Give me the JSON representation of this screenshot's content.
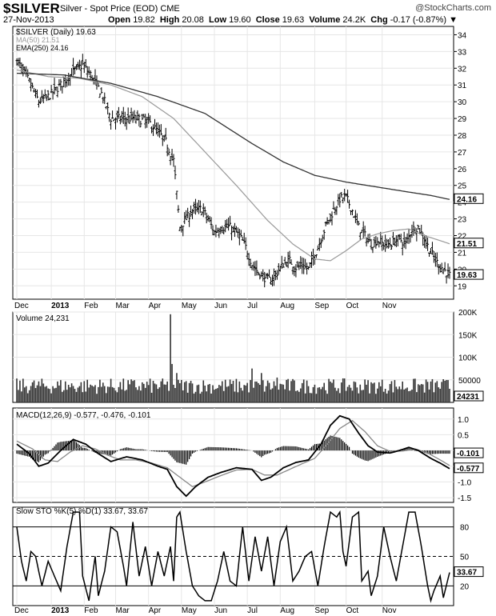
{
  "header": {
    "symbol": "$SILVER",
    "description": "Silver - Spot Price (EOD)",
    "exchange": "CME",
    "date": "27-Nov-2013",
    "open_label": "Open",
    "open": "19.82",
    "high_label": "High",
    "high": "20.08",
    "low_label": "Low",
    "low": "19.60",
    "close_label": "Close",
    "close": "19.63",
    "volume_label": "Volume",
    "volume": "24.2K",
    "chg_label": "Chg",
    "chg": "-0.17 (-0.87%)",
    "logo": "@StockCharts.com"
  },
  "colors": {
    "price": "#000000",
    "ma50": "#999999",
    "ema250": "#333333",
    "grid": "#e6e6e6",
    "volume": "#333333",
    "histogram": "#000000"
  },
  "chart_data": [
    {
      "type": "ohlc",
      "panel": "price",
      "legend": [
        "$SILVER (Daily) 19.63",
        "MA(50) 21.51",
        "EMA(250) 24.16"
      ],
      "x_labels": [
        "Dec",
        "2013",
        "Feb",
        "Mar",
        "Apr",
        "May",
        "Jun",
        "Jul",
        "Aug",
        "Sep",
        "Oct",
        "Nov"
      ],
      "yticks": [
        19,
        20,
        21,
        22,
        23,
        24,
        25,
        26,
        27,
        28,
        29,
        30,
        31,
        32,
        33,
        34
      ],
      "ylim": [
        18.2,
        34.5
      ],
      "close_anchors": [
        [
          0,
          32.5
        ],
        [
          8,
          31.2
        ],
        [
          14,
          30.0
        ],
        [
          20,
          30.3
        ],
        [
          28,
          31.0
        ],
        [
          36,
          31.8
        ],
        [
          42,
          32.2
        ],
        [
          48,
          31.5
        ],
        [
          54,
          30.5
        ],
        [
          60,
          29.0
        ],
        [
          68,
          29.0
        ],
        [
          76,
          29.0
        ],
        [
          84,
          28.8
        ],
        [
          90,
          28.2
        ],
        [
          95,
          27.6
        ],
        [
          100,
          26.5
        ],
        [
          104,
          22.5
        ],
        [
          108,
          23.0
        ],
        [
          112,
          23.5
        ],
        [
          118,
          23.6
        ],
        [
          122,
          23.0
        ],
        [
          126,
          22.2
        ],
        [
          130,
          22.5
        ],
        [
          136,
          22.5
        ],
        [
          142,
          22.0
        ],
        [
          146,
          21.3
        ],
        [
          150,
          20.3
        ],
        [
          154,
          19.8
        ],
        [
          158,
          19.5
        ],
        [
          162,
          19.3
        ],
        [
          166,
          19.8
        ],
        [
          170,
          20.3
        ],
        [
          174,
          20.5
        ],
        [
          178,
          20.1
        ],
        [
          182,
          20.2
        ],
        [
          186,
          20.0
        ],
        [
          190,
          20.8
        ],
        [
          194,
          21.8
        ],
        [
          198,
          22.8
        ],
        [
          202,
          23.5
        ],
        [
          206,
          24.2
        ],
        [
          210,
          24.3
        ],
        [
          214,
          23.5
        ],
        [
          218,
          22.5
        ],
        [
          222,
          22.0
        ],
        [
          226,
          21.5
        ],
        [
          230,
          21.7
        ],
        [
          234,
          21.5
        ],
        [
          238,
          21.5
        ],
        [
          244,
          21.8
        ],
        [
          248,
          21.5
        ],
        [
          252,
          22.4
        ],
        [
          256,
          22.5
        ],
        [
          260,
          21.8
        ],
        [
          264,
          21.0
        ],
        [
          268,
          20.4
        ],
        [
          272,
          20.0
        ],
        [
          276,
          19.63
        ]
      ],
      "ma50": {
        "label": "MA(50)",
        "last": 21.51,
        "anchors": [
          [
            0,
            31.9
          ],
          [
            20,
            31.5
          ],
          [
            40,
            31.4
          ],
          [
            60,
            31.0
          ],
          [
            80,
            30.3
          ],
          [
            100,
            29.0
          ],
          [
            120,
            27.0
          ],
          [
            140,
            25.0
          ],
          [
            160,
            22.9
          ],
          [
            176,
            21.5
          ],
          [
            190,
            20.6
          ],
          [
            200,
            20.5
          ],
          [
            210,
            21.1
          ],
          [
            220,
            21.8
          ],
          [
            230,
            22.1
          ],
          [
            240,
            22.3
          ],
          [
            250,
            22.4
          ],
          [
            260,
            22.0
          ],
          [
            270,
            21.7
          ],
          [
            276,
            21.51
          ]
        ]
      },
      "ema250": {
        "label": "EMA(250)",
        "last": 24.16,
        "anchors": [
          [
            0,
            31.7
          ],
          [
            30,
            31.6
          ],
          [
            60,
            31.1
          ],
          [
            90,
            30.3
          ],
          [
            120,
            29.3
          ],
          [
            150,
            27.5
          ],
          [
            170,
            26.4
          ],
          [
            190,
            25.6
          ],
          [
            210,
            25.2
          ],
          [
            230,
            24.9
          ],
          [
            250,
            24.6
          ],
          [
            264,
            24.4
          ],
          [
            276,
            24.16
          ]
        ]
      },
      "last_values": [
        "24.16",
        "21.51",
        "19.63"
      ]
    },
    {
      "type": "bar",
      "panel": "volume",
      "legend": "Volume 24,231",
      "yticks": [
        "200K",
        "150K",
        "100K",
        "50000"
      ],
      "ylim": [
        0,
        200000
      ],
      "spikes": [
        [
          98,
          195000
        ],
        [
          99,
          85000
        ],
        [
          102,
          65000
        ],
        [
          150,
          75000
        ],
        [
          156,
          65000
        ],
        [
          166,
          55000
        ]
      ],
      "base_level": 38000,
      "last_value": "24231"
    },
    {
      "type": "line",
      "panel": "macd",
      "legend": "MACD(12,26,9) -0.577, -0.476, -0.101",
      "yticks": [
        1.0,
        0.5,
        0.0,
        -0.5,
        -1.0,
        -1.5
      ],
      "ylim": [
        -1.65,
        1.35
      ],
      "macd_anchors": [
        [
          0,
          0.2
        ],
        [
          8,
          -0.1
        ],
        [
          14,
          -0.5
        ],
        [
          20,
          -0.4
        ],
        [
          28,
          0.0
        ],
        [
          36,
          0.35
        ],
        [
          44,
          0.2
        ],
        [
          52,
          -0.1
        ],
        [
          60,
          -0.35
        ],
        [
          70,
          -0.2
        ],
        [
          80,
          -0.3
        ],
        [
          90,
          -0.5
        ],
        [
          96,
          -0.6
        ],
        [
          102,
          -1.15
        ],
        [
          108,
          -1.45
        ],
        [
          114,
          -1.15
        ],
        [
          122,
          -0.85
        ],
        [
          130,
          -0.7
        ],
        [
          140,
          -0.55
        ],
        [
          150,
          -0.6
        ],
        [
          156,
          -0.95
        ],
        [
          162,
          -0.85
        ],
        [
          170,
          -0.55
        ],
        [
          178,
          -0.38
        ],
        [
          186,
          -0.3
        ],
        [
          194,
          0.2
        ],
        [
          200,
          0.8
        ],
        [
          206,
          1.1
        ],
        [
          212,
          1.0
        ],
        [
          218,
          0.55
        ],
        [
          224,
          0.15
        ],
        [
          230,
          -0.05
        ],
        [
          238,
          -0.08
        ],
        [
          244,
          0.0
        ],
        [
          250,
          0.1
        ],
        [
          256,
          0.0
        ],
        [
          264,
          -0.25
        ],
        [
          270,
          -0.4
        ],
        [
          276,
          -0.577
        ]
      ],
      "signal_anchors": [
        [
          0,
          0.3
        ],
        [
          10,
          0.05
        ],
        [
          18,
          -0.3
        ],
        [
          26,
          -0.35
        ],
        [
          34,
          -0.05
        ],
        [
          42,
          0.15
        ],
        [
          50,
          0.05
        ],
        [
          58,
          -0.15
        ],
        [
          66,
          -0.3
        ],
        [
          76,
          -0.3
        ],
        [
          86,
          -0.4
        ],
        [
          96,
          -0.55
        ],
        [
          104,
          -0.85
        ],
        [
          112,
          -1.15
        ],
        [
          120,
          -1.0
        ],
        [
          130,
          -0.8
        ],
        [
          140,
          -0.62
        ],
        [
          150,
          -0.6
        ],
        [
          158,
          -0.78
        ],
        [
          166,
          -0.78
        ],
        [
          174,
          -0.6
        ],
        [
          182,
          -0.42
        ],
        [
          190,
          -0.25
        ],
        [
          198,
          0.2
        ],
        [
          206,
          0.7
        ],
        [
          214,
          0.95
        ],
        [
          222,
          0.6
        ],
        [
          230,
          0.15
        ],
        [
          238,
          -0.03
        ],
        [
          246,
          -0.02
        ],
        [
          254,
          0.05
        ],
        [
          262,
          -0.08
        ],
        [
          270,
          -0.3
        ],
        [
          276,
          -0.476
        ]
      ],
      "last_values": [
        "-0.101",
        "-0.476",
        "-0.577"
      ]
    },
    {
      "type": "line",
      "panel": "sto",
      "legend": "Slow STO %K(5) %D(1) 33.67, 33.67",
      "yticks": [
        80,
        50,
        20
      ],
      "ylim": [
        0,
        100
      ],
      "lines": [
        80,
        50,
        20
      ],
      "k_anchors": [
        [
          0,
          80
        ],
        [
          3,
          45
        ],
        [
          6,
          25
        ],
        [
          9,
          55
        ],
        [
          12,
          50
        ],
        [
          16,
          20
        ],
        [
          20,
          45
        ],
        [
          24,
          30
        ],
        [
          28,
          15
        ],
        [
          32,
          60
        ],
        [
          36,
          95
        ],
        [
          40,
          95
        ],
        [
          42,
          30
        ],
        [
          46,
          5
        ],
        [
          50,
          50
        ],
        [
          52,
          10
        ],
        [
          56,
          35
        ],
        [
          60,
          80
        ],
        [
          64,
          75
        ],
        [
          68,
          40
        ],
        [
          70,
          20
        ],
        [
          74,
          85
        ],
        [
          78,
          30
        ],
        [
          82,
          60
        ],
        [
          86,
          20
        ],
        [
          90,
          55
        ],
        [
          94,
          30
        ],
        [
          98,
          60
        ],
        [
          100,
          25
        ],
        [
          102,
          90
        ],
        [
          104,
          95
        ],
        [
          108,
          55
        ],
        [
          112,
          20
        ],
        [
          116,
          10
        ],
        [
          120,
          5
        ],
        [
          124,
          5
        ],
        [
          128,
          25
        ],
        [
          132,
          55
        ],
        [
          136,
          25
        ],
        [
          140,
          20
        ],
        [
          144,
          80
        ],
        [
          148,
          25
        ],
        [
          152,
          70
        ],
        [
          156,
          35
        ],
        [
          160,
          70
        ],
        [
          164,
          20
        ],
        [
          168,
          65
        ],
        [
          172,
          80
        ],
        [
          176,
          25
        ],
        [
          180,
          35
        ],
        [
          184,
          50
        ],
        [
          188,
          55
        ],
        [
          192,
          20
        ],
        [
          196,
          60
        ],
        [
          200,
          95
        ],
        [
          204,
          90
        ],
        [
          206,
          95
        ],
        [
          208,
          55
        ],
        [
          210,
          40
        ],
        [
          214,
          90
        ],
        [
          218,
          95
        ],
        [
          220,
          25
        ],
        [
          224,
          35
        ],
        [
          226,
          10
        ],
        [
          230,
          30
        ],
        [
          234,
          80
        ],
        [
          238,
          50
        ],
        [
          242,
          25
        ],
        [
          246,
          60
        ],
        [
          250,
          95
        ],
        [
          254,
          95
        ],
        [
          258,
          60
        ],
        [
          262,
          20
        ],
        [
          264,
          5
        ],
        [
          266,
          15
        ],
        [
          270,
          30
        ],
        [
          272,
          8
        ],
        [
          276,
          33.67
        ]
      ],
      "last_value": "33.67"
    }
  ]
}
